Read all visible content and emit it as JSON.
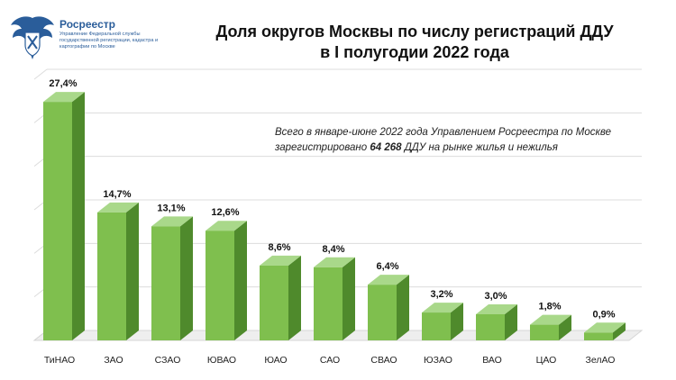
{
  "header": {
    "org_name": "Росреестр",
    "org_sub": "Управление Федеральной службы государственной регистрации, кадастра и картографии по Москве",
    "logo_icon": "double-headed-eagle-emblem"
  },
  "title": {
    "line1": "Доля округов Москвы по числу регистраций ДДУ",
    "line2": "в I полугодии 2022 года"
  },
  "note": {
    "line1": "Всего в январе-июне 2022 года Управлением Росреестра по Москве",
    "line2_before": "зарегистрировано ",
    "line2_value": "64 268",
    "line2_after": " ДДУ на рынке жилья и нежилья"
  },
  "colors": {
    "bar_front": "#7fbf4e",
    "bar_top": "#a9d88a",
    "bar_side": "#4f8a2c",
    "grid": "#dcdcdc",
    "logo": "#2a5d9a"
  },
  "chart_data": {
    "type": "bar",
    "categories": [
      "ТиНАО",
      "ЗАО",
      "СЗАО",
      "ЮВАО",
      "ЮАО",
      "САО",
      "СВАО",
      "ЮЗАО",
      "ВАО",
      "ЦАО",
      "ЗелАО"
    ],
    "values": [
      27.4,
      14.7,
      13.1,
      12.6,
      8.6,
      8.4,
      6.4,
      3.2,
      3.0,
      1.8,
      0.9
    ],
    "labels": [
      "27,4%",
      "14,7%",
      "13,1%",
      "12,6%",
      "8,6%",
      "8,4%",
      "6,4%",
      "3,2%",
      "3,0%",
      "1,8%",
      "0,9%"
    ],
    "ylim": [
      0,
      30
    ],
    "grid": true,
    "three_d": true
  }
}
